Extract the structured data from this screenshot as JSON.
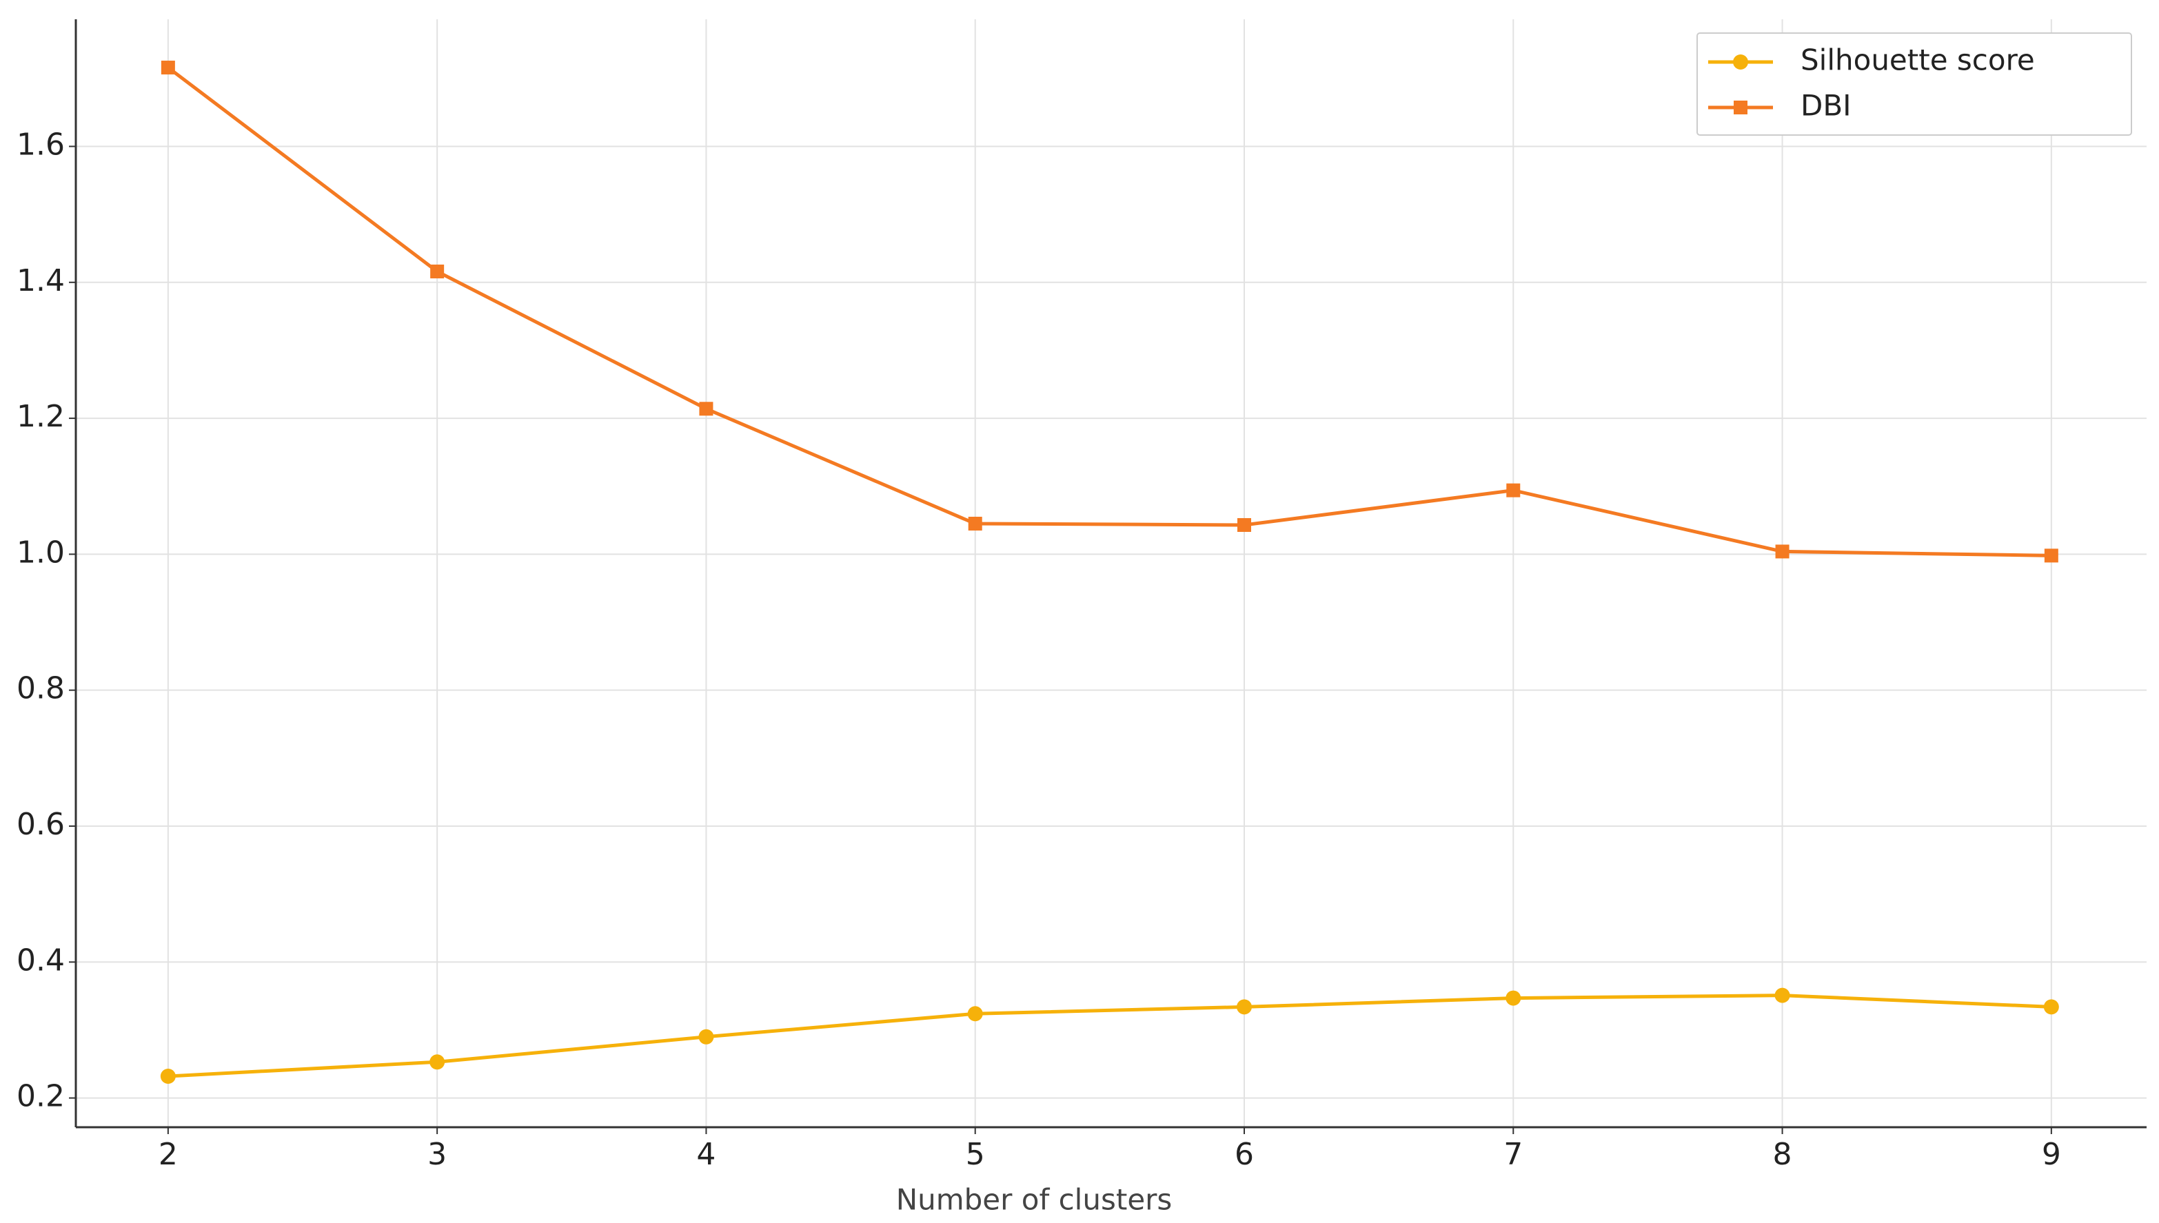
{
  "chart_data": {
    "type": "line",
    "x_label": "Number of clusters",
    "x": [
      2,
      3,
      4,
      5,
      6,
      7,
      8,
      9
    ],
    "series": [
      {
        "name": "Silhouette score",
        "color": "#f6b10a",
        "marker": "circle",
        "values": [
          0.232,
          0.253,
          0.29,
          0.324,
          0.334,
          0.347,
          0.351,
          0.334
        ]
      },
      {
        "name": "DBI",
        "color": "#f47a22",
        "marker": "square",
        "values": [
          1.716,
          1.416,
          1.214,
          1.045,
          1.043,
          1.094,
          1.004,
          0.998
        ]
      }
    ],
    "xlim": [
      1.657,
      9.354
    ],
    "ylim": [
      0.157,
      1.787
    ],
    "xticks": [
      2,
      3,
      4,
      5,
      6,
      7,
      8,
      9
    ],
    "yticks": [
      0.2,
      0.4,
      0.6,
      0.8,
      {
        "value": 1,
        "label": "1.0"
      },
      1.2,
      1.4,
      1.6
    ],
    "grid": true,
    "legend": "upper right"
  }
}
